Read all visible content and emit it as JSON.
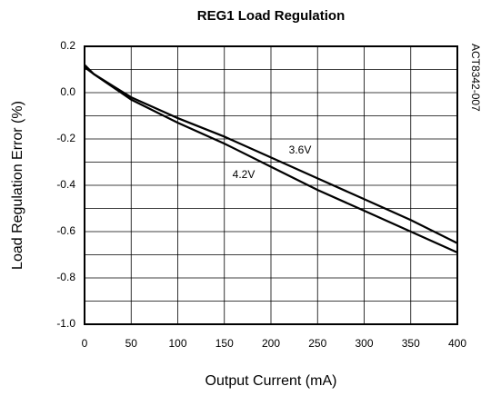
{
  "chart_data": {
    "type": "line",
    "title": "REG1 Load Regulation",
    "x_label": "Output Current (mA)",
    "y_label": "Load Regulation Error (%)",
    "side_note": "ACT8342-007",
    "x": [
      0,
      10,
      50,
      100,
      150,
      200,
      250,
      300,
      350,
      400
    ],
    "series": [
      {
        "name": "3.6V",
        "color": "#000000",
        "values": [
          0.11,
          0.08,
          -0.02,
          -0.11,
          -0.19,
          -0.28,
          -0.37,
          -0.46,
          -0.55,
          -0.65
        ]
      },
      {
        "name": "4.2V",
        "color": "#000000",
        "values": [
          0.12,
          0.08,
          -0.03,
          -0.13,
          -0.22,
          -0.32,
          -0.42,
          -0.51,
          -0.6,
          -0.69
        ]
      }
    ],
    "xlim": [
      0,
      400
    ],
    "xticks": [
      0,
      50,
      100,
      150,
      200,
      250,
      300,
      350,
      400
    ],
    "ylim": [
      -1,
      0.2
    ],
    "yticks": [
      0.2,
      {
        "value": 0,
        "label": "0.0"
      },
      -0.2,
      -0.4,
      -0.6,
      -0.8,
      {
        "value": -1,
        "label": "-1.0"
      }
    ],
    "y_minor_ticks": [
      0.1,
      -0.1,
      -0.3,
      -0.5,
      -0.7,
      -0.9
    ],
    "grid": true
  }
}
